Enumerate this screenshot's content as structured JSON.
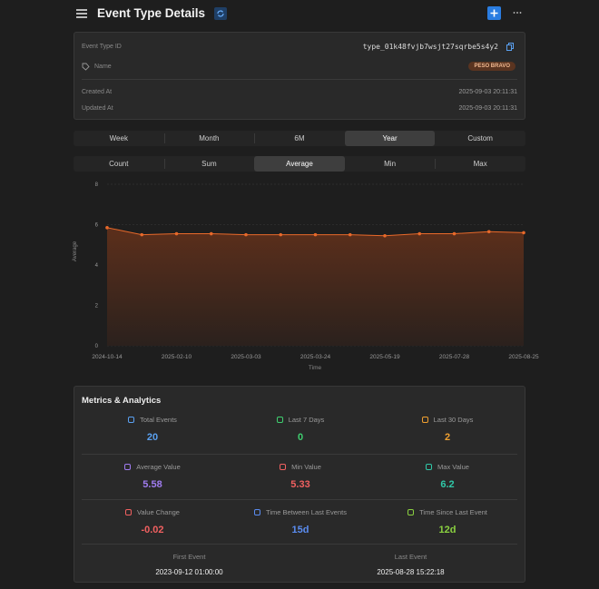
{
  "header": {
    "title": "Event Type Details"
  },
  "details": {
    "rows": [
      {
        "label": "Event Type ID",
        "value": "type_01k48fvjb7wsjt27sqrbe5s4y2"
      },
      {
        "label": "Name",
        "value": "PESO BRAVO"
      },
      {
        "label": "Created At",
        "value": "2025-09-03 20:11:31"
      },
      {
        "label": "Updated At",
        "value": "2025-09-03 20:11:31"
      }
    ]
  },
  "range_tabs": {
    "items": [
      "Week",
      "Month",
      "6M",
      "Year",
      "Custom"
    ],
    "active": 3
  },
  "metric_tabs": {
    "items": [
      "Count",
      "Sum",
      "Average",
      "Min",
      "Max"
    ],
    "active": 2
  },
  "chart_data": {
    "type": "area",
    "x_label": "Time",
    "y_label": "Average",
    "categories": [
      "2024-10-14",
      null,
      "2025-02-10",
      null,
      "2025-03-03",
      null,
      "2025-03-24",
      null,
      "2025-05-19",
      null,
      "2025-07-28",
      null,
      "2025-08-25"
    ],
    "values": [
      5.85,
      5.5,
      5.55,
      5.55,
      5.5,
      5.5,
      5.5,
      5.5,
      5.45,
      5.55,
      5.55,
      5.65,
      5.6
    ],
    "color": "#e8692a",
    "ylim": [
      0,
      8
    ],
    "yticks": [
      0,
      2,
      4,
      6,
      8
    ],
    "grid": true
  },
  "metrics": {
    "title": "Metrics & Analytics",
    "items": [
      {
        "label": "Total Events",
        "value": 20,
        "color": "#5aa0f0"
      },
      {
        "label": "Last 7 Days",
        "value": 0,
        "color": "#3fcf6f"
      },
      {
        "label": "Last 30 Days",
        "value": 2,
        "color": "#f0a030"
      },
      {
        "label": "Average Value",
        "value": 5.58,
        "color": "#a07cf0"
      },
      {
        "label": "Min Value",
        "value": 5.33,
        "color": "#f06060"
      },
      {
        "label": "Max Value",
        "value": 6.2,
        "color": "#30c8a8"
      },
      {
        "label": "Value Change",
        "value": -0.02,
        "color": "#f06060"
      },
      {
        "label": "Time Between Last Events",
        "value": "15d",
        "color": "#5a8cf0"
      },
      {
        "label": "Time Since Last Event",
        "value": "12d",
        "color": "#8ad040"
      }
    ],
    "first_event": {
      "label": "First Event",
      "value": "2023-09-12 01:00:00"
    },
    "last_event": {
      "label": "Last Event",
      "value": "2025-08-28 15:22:18"
    }
  }
}
